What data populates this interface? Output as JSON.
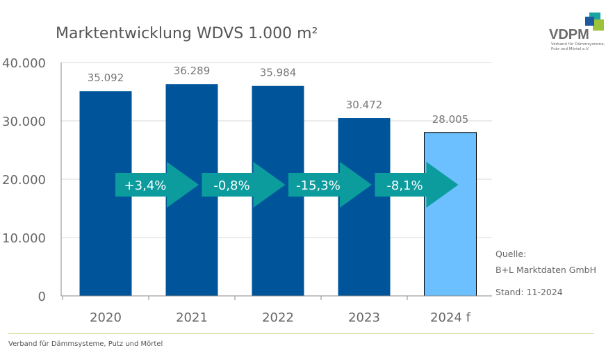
{
  "title": "Marktentwicklung WDVS 1.000 m²",
  "logo": {
    "name": "VDPM",
    "subtitle": "Verband für Dämmsysteme, Putz und Mörtel e.V."
  },
  "source": {
    "label": "Quelle:",
    "name": "B+L Marktdaten GmbH",
    "stand": "Stand: 11-2024"
  },
  "footer": "Verband für Dämmsysteme, Putz und Mörtel",
  "colors": {
    "bar": "#00559A",
    "forecast_bar": "#6CC0FF",
    "arrow": "#0C9C9E",
    "grid": "#d9d9d9",
    "footer_line": "#c8d98a"
  },
  "chart_data": {
    "type": "bar",
    "title": "Marktentwicklung WDVS 1.000 m²",
    "categories": [
      "2020",
      "2021",
      "2022",
      "2023",
      "2024 f"
    ],
    "values": [
      35092,
      36289,
      35984,
      30472,
      28005
    ],
    "value_labels": [
      "35.092",
      "36.289",
      "35.984",
      "30.472",
      "28.005"
    ],
    "forecast_index": 4,
    "ylim": [
      0,
      40000
    ],
    "yticks": [
      0,
      10000,
      20000,
      30000,
      40000
    ],
    "ytick_labels": [
      "0",
      "10.000",
      "20.000",
      "30.000",
      "40.000"
    ],
    "grid": true,
    "changes": [
      "+3,4%",
      "-0,8%",
      "-15,3%",
      "-8,1%"
    ]
  }
}
